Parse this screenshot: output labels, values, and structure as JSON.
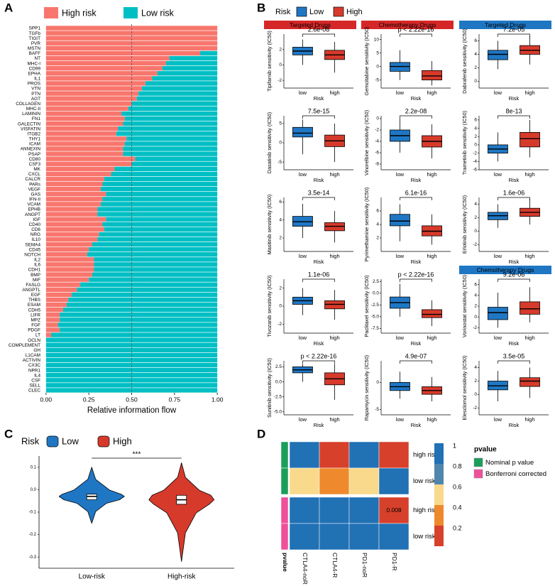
{
  "chart_data": [
    {
      "type": "bar",
      "panel": "A",
      "orientation": "horizontal",
      "stacked": true,
      "xlabel": "Relative information flow",
      "categories": [
        "SPP1",
        "TGFb",
        "TIGIT",
        "PVR",
        "MSTN",
        "BAFF",
        "NT",
        "MHC-I",
        "CD99",
        "EPHA",
        "IL1",
        "PROS",
        "VTN",
        "PTN",
        "AGT",
        "COLLAGEN",
        "MHC-II",
        "LAMININ",
        "FN1",
        "GALECTIN",
        "VISFATIN",
        "ITGB2",
        "THY1",
        "ICAM",
        "ANNEXIN",
        "PSAP",
        "CD80",
        "CSF3",
        "MK",
        "CXCL",
        "CALCR",
        "PARs",
        "VEGF",
        "GAS",
        "IFN-II",
        "VCAM",
        "EPHB",
        "ANGPT",
        "IGF",
        "CD40",
        "CD6",
        "NRG",
        "IL10",
        "SEMA4",
        "CD45",
        "NOTCH",
        "IL2",
        "IL6",
        "CDH1",
        "BMP",
        "MIF",
        "FASLG",
        "ANGPTL",
        "EGF",
        "THBS",
        "ESAM",
        "CDH5",
        "LIFR",
        "MPZ",
        "FGF",
        "PDGF",
        "LT",
        "OCLN",
        "COMPLEMENT",
        "GH",
        "L1CAM",
        "ACTIVIN",
        "CX3C",
        "NPR1",
        "IL4",
        "CSF",
        "SELL",
        "CLEC"
      ],
      "label_groups": [
        0,
        0,
        0,
        0,
        0,
        1,
        1,
        0,
        0,
        1,
        1,
        1,
        1,
        0,
        1,
        1,
        1,
        1,
        1,
        1,
        1,
        1,
        1,
        1,
        1,
        1,
        1,
        1,
        2,
        2,
        2,
        2,
        2,
        1,
        2,
        2,
        2,
        1,
        2,
        2,
        1,
        2,
        1,
        2,
        2,
        2,
        1,
        2,
        2,
        2,
        2,
        2,
        2,
        2,
        2,
        1,
        2,
        2,
        2,
        2,
        2,
        2,
        2,
        2,
        2,
        2,
        2,
        2,
        2,
        2,
        2,
        2,
        2
      ],
      "label_palette": [
        "#F8766D",
        "#000000",
        "#00BFC4"
      ],
      "series": [
        {
          "name": "High risk",
          "color": "#F8766D",
          "values": [
            1,
            1,
            1,
            1,
            1,
            0.9,
            0.72,
            0.7,
            0.68,
            0.65,
            0.62,
            0.58,
            0.56,
            0.54,
            0.53,
            0.5,
            0.48,
            0.44,
            0.46,
            0.45,
            0.42,
            0.41,
            0.47,
            0.46,
            0.45,
            0.45,
            0.52,
            0.5,
            0.4,
            0.38,
            0.34,
            0.33,
            0.32,
            0.35,
            0.33,
            0.32,
            0.3,
            0.3,
            0.35,
            0.33,
            0.34,
            0.31,
            0.3,
            0.27,
            0.25,
            0.24,
            0.28,
            0.28,
            0.28,
            0.27,
            0.25,
            0.2,
            0.18,
            0.15,
            0.13,
            0.12,
            0.1,
            0.08,
            0.08,
            0.07,
            0.08,
            0.03,
            0,
            0,
            0,
            0,
            0,
            0,
            0,
            0,
            0,
            0,
            0
          ]
        },
        {
          "name": "Low risk",
          "color": "#00BFC4",
          "values": [
            0,
            0,
            0,
            0,
            0,
            0.1,
            0.28,
            0.3,
            0.32,
            0.35,
            0.38,
            0.42,
            0.44,
            0.46,
            0.47,
            0.5,
            0.52,
            0.56,
            0.54,
            0.55,
            0.58,
            0.59,
            0.53,
            0.54,
            0.55,
            0.55,
            0.48,
            0.5,
            0.6,
            0.62,
            0.66,
            0.67,
            0.68,
            0.65,
            0.67,
            0.68,
            0.7,
            0.7,
            0.65,
            0.67,
            0.66,
            0.69,
            0.7,
            0.73,
            0.75,
            0.76,
            0.72,
            0.72,
            0.72,
            0.73,
            0.75,
            0.8,
            0.82,
            0.85,
            0.87,
            0.88,
            0.9,
            0.92,
            0.92,
            0.93,
            0.92,
            0.97,
            1,
            1,
            1,
            1,
            1,
            1,
            1,
            1,
            1,
            1,
            1
          ]
        }
      ],
      "xlim": [
        -0.02,
        1.02
      ],
      "xticks": [
        {
          "value": 0,
          "label": "0.00"
        },
        {
          "value": 0.25,
          "label": "0.25"
        },
        {
          "value": 0.5,
          "label": "0.50"
        },
        {
          "value": 0.75,
          "label": "0.75"
        },
        {
          "value": 1,
          "label": "1.00"
        }
      ],
      "reference_line": 0.5,
      "legend": "top"
    },
    {
      "type": "box",
      "panel": "B",
      "legend_title": "Risk",
      "series": [
        {
          "name": "Low",
          "color": "#1f77c4"
        },
        {
          "name": "High",
          "color": "#d63a2b"
        }
      ],
      "subplots": [
        {
          "group": "Targeted Drugs",
          "group_color": "#d62728",
          "ylabel": "Tipifarnib sensitivity (IC50)",
          "pvalue": "2.6e-08",
          "xlabel": "Risk",
          "categories": [
            "low",
            "high"
          ],
          "ylim": [
            -3,
            4
          ],
          "yticks": [
            -2,
            0,
            2
          ],
          "boxes": [
            {
              "min": 0,
              "q1": 1.3,
              "median": 1.8,
              "q3": 2.3,
              "max": 3.3
            },
            {
              "min": -1,
              "q1": 0.7,
              "median": 1.3,
              "q3": 1.9,
              "max": 3
            }
          ]
        },
        {
          "group": "Chemotherapy Drugs",
          "group_color": "#d62728",
          "ylabel": "Gemcitabine sensitivity (IC50)",
          "pvalue": "p < 2.22e-16",
          "xlabel": "Risk",
          "categories": [
            "low",
            "high"
          ],
          "ylim": [
            -8,
            12
          ],
          "yticks": [
            -5,
            0,
            5,
            10
          ],
          "boxes": [
            {
              "min": -5,
              "q1": -1.8,
              "median": 0,
              "q3": 1.5,
              "max": 6
            },
            {
              "min": -7,
              "q1": -5,
              "median": -3.5,
              "q3": -1.5,
              "max": 2
            }
          ]
        },
        {
          "group": "Targeted Drugs",
          "group_color": "#1f77c4",
          "ylabel": "Dabrafenib sensitivity (IC50)",
          "pvalue": "7.2e-05",
          "xlabel": "Risk",
          "categories": [
            "low",
            "high"
          ],
          "ylim": [
            -1,
            7
          ],
          "yticks": [
            0,
            2,
            4,
            6
          ],
          "boxes": [
            {
              "min": 1.8,
              "q1": 3.2,
              "median": 4,
              "q3": 4.6,
              "max": 6
            },
            {
              "min": 2.5,
              "q1": 4,
              "median": 4.6,
              "q3": 5.3,
              "max": 6.7
            }
          ]
        },
        {
          "ylabel": "Dasatinib sensitivity (IC50)",
          "pvalue": "7.5e-15",
          "xlabel": "Risk",
          "categories": [
            "low",
            "high"
          ],
          "ylim": [
            -7,
            7
          ],
          "yticks": [
            -5,
            0,
            5
          ],
          "boxes": [
            {
              "min": -3,
              "q1": 1.5,
              "median": 2.5,
              "q3": 4,
              "max": 6
            },
            {
              "min": -5,
              "q1": -1,
              "median": 0.5,
              "q3": 2,
              "max": 5
            }
          ]
        },
        {
          "ylabel": "Vinorelbine sensitivity (IC50)",
          "pvalue": "2.2e-08",
          "xlabel": "Risk",
          "categories": [
            "low",
            "high"
          ],
          "ylim": [
            -9,
            0.5
          ],
          "yticks": [
            -8,
            -6,
            -4,
            -2,
            0
          ],
          "boxes": [
            {
              "min": -6,
              "q1": -4,
              "median": -3,
              "q3": -2,
              "max": 0
            },
            {
              "min": -7,
              "q1": -5,
              "median": -4,
              "q3": -3,
              "max": -1
            }
          ]
        },
        {
          "ylabel": "Trametinib sensitivity (IC50)",
          "pvalue": "8e-13",
          "xlabel": "Risk",
          "categories": [
            "low",
            "high"
          ],
          "ylim": [
            -6,
            7
          ],
          "yticks": [
            -6,
            -4,
            -2,
            0,
            2,
            4,
            6
          ],
          "boxes": [
            {
              "min": -4,
              "q1": -2,
              "median": -1,
              "q3": 0,
              "max": 3
            },
            {
              "min": -3,
              "q1": -0.5,
              "median": 1.5,
              "q3": 3,
              "max": 6
            }
          ]
        },
        {
          "ylabel": "Masitinib sensitivity (IC50)",
          "pvalue": "3.5e-14",
          "xlabel": "Risk",
          "categories": [
            "low",
            "high"
          ],
          "ylim": [
            0.5,
            6.5
          ],
          "yticks": [
            2,
            4,
            6
          ],
          "boxes": [
            {
              "min": 2,
              "q1": 3.3,
              "median": 3.8,
              "q3": 4.4,
              "max": 5.8
            },
            {
              "min": 1.5,
              "q1": 2.8,
              "median": 3.3,
              "q3": 3.7,
              "max": 5
            }
          ]
        },
        {
          "ylabel": "Pyrimethamine sensitivity (IC50)",
          "pvalue": "6.1e-16",
          "xlabel": "Risk",
          "categories": [
            "low",
            "high"
          ],
          "ylim": [
            0,
            8
          ],
          "yticks": [
            2,
            4,
            6
          ],
          "boxes": [
            {
              "min": 1.5,
              "q1": 3.8,
              "median": 4.5,
              "q3": 5.5,
              "max": 7
            },
            {
              "min": 1,
              "q1": 2.3,
              "median": 3,
              "q3": 3.8,
              "max": 5.5
            }
          ]
        },
        {
          "ylabel": "Erlotinib sensitivity (IC50)",
          "pvalue": "1.6e-06",
          "xlabel": "Risk",
          "categories": [
            "low",
            "high"
          ],
          "ylim": [
            -3,
            5
          ],
          "yticks": [
            -2,
            0,
            2,
            4
          ],
          "boxes": [
            {
              "min": 0.5,
              "q1": 1.7,
              "median": 2.3,
              "q3": 2.8,
              "max": 4
            },
            {
              "min": 1,
              "q1": 2.2,
              "median": 2.8,
              "q3": 3.4,
              "max": 4.8
            }
          ]
        },
        {
          "ylabel": "Tivozanib sensitivity (IC50)",
          "pvalue": "1.1e-06",
          "xlabel": "Risk",
          "categories": [
            "low",
            "high"
          ],
          "ylim": [
            -3,
            3
          ],
          "yticks": [
            -2,
            0,
            2
          ],
          "boxes": [
            {
              "min": -1,
              "q1": 0.2,
              "median": 0.6,
              "q3": 1,
              "max": 2
            },
            {
              "min": -1.5,
              "q1": -0.3,
              "median": 0.2,
              "q3": 0.6,
              "max": 1.8
            }
          ]
        },
        {
          "ylabel": "Paclitaxel sensitivity (IC50)",
          "pvalue": "p < 2.22e-16",
          "xlabel": "Risk",
          "categories": [
            "low",
            "high"
          ],
          "ylim": [
            -8.5,
            3
          ],
          "yticks": [
            -7.5,
            {
              "value": -5,
              "label": "-5.0"
            },
            -2.5,
            {
              "value": 0,
              "label": "0.0"
            },
            2.5
          ],
          "boxes": [
            {
              "min": -5,
              "q1": -3.2,
              "median": -2,
              "q3": -0.8,
              "max": 2
            },
            {
              "min": -7,
              "q1": -5.2,
              "median": -4.5,
              "q3": -3.5,
              "max": -1.5
            }
          ]
        },
        {
          "group": "Chemotherapy Drugs",
          "group_color": "#1f77c4",
          "ylabel": "Vorinostat sensitivity (IC50)",
          "pvalue": "9.2e-06",
          "xlabel": "Risk",
          "categories": [
            "low",
            "high"
          ],
          "ylim": [
            -3,
            7
          ],
          "yticks": [
            -2,
            0,
            2,
            4,
            6
          ],
          "boxes": [
            {
              "min": -2,
              "q1": -0.5,
              "median": 0.8,
              "q3": 1.8,
              "max": 4.5
            },
            {
              "min": -1,
              "q1": 0.5,
              "median": 1.5,
              "q3": 2.8,
              "max": 5.5
            }
          ]
        },
        {
          "ylabel": "Sunitinib sensitivity (IC50)",
          "pvalue": "p < 2.22e-16",
          "xlabel": "Risk",
          "categories": [
            "low",
            "high"
          ],
          "ylim": [
            -5.5,
            3.5
          ],
          "yticks": [
            {
              "value": -5,
              "label": "-5.0"
            },
            -2.5,
            {
              "value": 0,
              "label": "0.0"
            },
            2.5
          ],
          "boxes": [
            {
              "min": 0,
              "q1": 1.5,
              "median": 2,
              "q3": 2.5,
              "max": 3
            },
            {
              "min": -3,
              "q1": -0.5,
              "median": 0.5,
              "q3": 1.5,
              "max": 3
            }
          ]
        },
        {
          "ylabel": "Rapamycin sensitivity (IC50)",
          "pvalue": "4.9e-07",
          "xlabel": "Risk",
          "categories": [
            "low",
            "high"
          ],
          "ylim": [
            -6,
            4
          ],
          "yticks": [
            -5,
            0
          ],
          "boxes": [
            {
              "min": -3,
              "q1": -1.5,
              "median": -0.8,
              "q3": 0,
              "max": 2
            },
            {
              "min": -3.5,
              "q1": -2.2,
              "median": -1.5,
              "q3": -0.8,
              "max": 1
            }
          ]
        },
        {
          "ylabel": "Elesclomol sensitivity (IC50)",
          "pvalue": "3.5e-05",
          "xlabel": "Risk",
          "categories": [
            "low",
            "high"
          ],
          "ylim": [
            -3,
            5
          ],
          "yticks": [
            -2,
            0,
            2,
            4
          ],
          "boxes": [
            {
              "min": -1,
              "q1": 0.7,
              "median": 1.3,
              "q3": 2,
              "max": 3.5
            },
            {
              "min": -0.5,
              "q1": 1.2,
              "median": 2,
              "q3": 2.5,
              "max": 4
            }
          ]
        }
      ]
    },
    {
      "type": "violin",
      "panel": "C",
      "legend_title": "Risk",
      "series": [
        {
          "name": "Low",
          "color": "#1f77c4"
        },
        {
          "name": "High",
          "color": "#d63a2b"
        }
      ],
      "categories": [
        "Low-risk",
        "High-risk"
      ],
      "significance": "***",
      "violins": [
        {
          "min": -0.15,
          "q1": -0.045,
          "median": -0.03,
          "q3": -0.02,
          "max": 0.1
        },
        {
          "min": -0.32,
          "q1": -0.065,
          "median": -0.045,
          "q3": -0.025,
          "max": 0.12
        }
      ],
      "ylim": [
        -0.35,
        0.15
      ],
      "yticks": [
        -0.3,
        -0.2,
        -0.1,
        {
          "value": 0,
          "label": "0.0"
        },
        0.1
      ]
    },
    {
      "type": "heatmap",
      "panel": "D",
      "columns": [
        "CTLA4-noR",
        "CTLA4-R",
        "PD1-noR",
        "PD1-R"
      ],
      "rows": [
        "high risk",
        "low risk",
        "high risk",
        "low risk"
      ],
      "values": [
        [
          1,
          0.15,
          1,
          0.15
        ],
        [
          0.6,
          0.4,
          0.6,
          1
        ],
        [
          1,
          1,
          1,
          0.008
        ],
        [
          1,
          1,
          1,
          1
        ]
      ],
      "value_labels": [
        [
          null,
          null,
          null,
          null
        ],
        [
          null,
          null,
          null,
          null
        ],
        [
          null,
          null,
          null,
          "0.008"
        ],
        [
          null,
          null,
          null,
          null
        ]
      ],
      "row_group": [
        0,
        0,
        1,
        1
      ],
      "annotation_label": "pvalue",
      "legend_title": "pvalue",
      "groups": [
        {
          "name": "Nominal p value",
          "color": "#1b9e5a"
        },
        {
          "name": "Bonferroni corrected",
          "color": "#f0509a"
        }
      ],
      "colorbar": {
        "ticks": [
          1,
          0.8,
          0.6,
          0.4,
          0.2
        ],
        "colors": [
          "#2171b5",
          "#4f86ad",
          "#f9d98b",
          "#ee8a2d",
          "#d7402b"
        ]
      }
    }
  ]
}
